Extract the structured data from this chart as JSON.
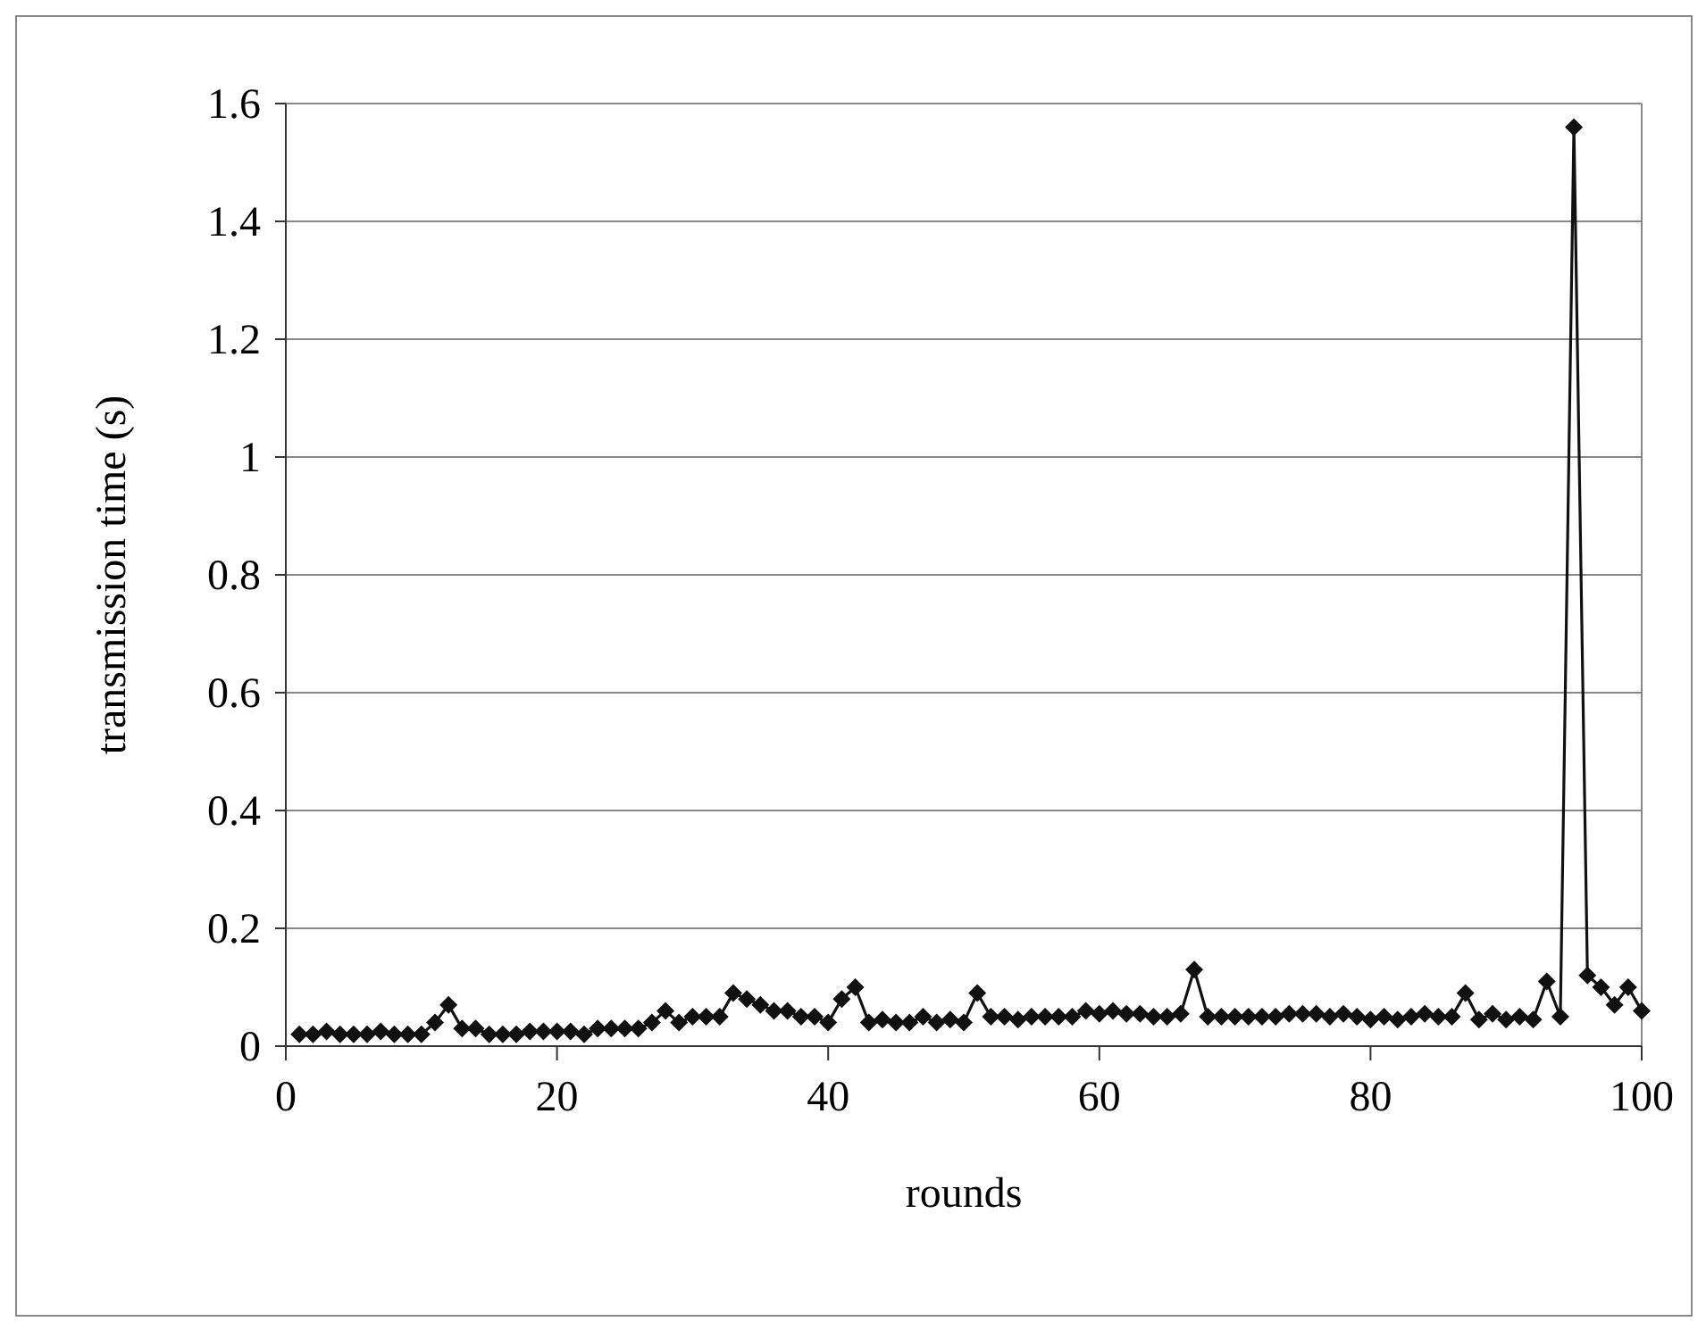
{
  "chart_data": {
    "type": "line",
    "xlabel": "rounds",
    "ylabel": "transmission time (s)",
    "x": [
      1,
      2,
      3,
      4,
      5,
      6,
      7,
      8,
      9,
      10,
      11,
      12,
      13,
      14,
      15,
      16,
      17,
      18,
      19,
      20,
      21,
      22,
      23,
      24,
      25,
      26,
      27,
      28,
      29,
      30,
      31,
      32,
      33,
      34,
      35,
      36,
      37,
      38,
      39,
      40,
      41,
      42,
      43,
      44,
      45,
      46,
      47,
      48,
      49,
      50,
      51,
      52,
      53,
      54,
      55,
      56,
      57,
      58,
      59,
      60,
      61,
      62,
      63,
      64,
      65,
      66,
      67,
      68,
      69,
      70,
      71,
      72,
      73,
      74,
      75,
      76,
      77,
      78,
      79,
      80,
      81,
      82,
      83,
      84,
      85,
      86,
      87,
      88,
      89,
      90,
      91,
      92,
      93,
      94,
      95,
      96,
      97,
      98,
      99,
      100
    ],
    "series": [
      {
        "color": "#111111",
        "values": [
          0.02,
          0.02,
          0.025,
          0.02,
          0.02,
          0.02,
          0.025,
          0.02,
          0.02,
          0.02,
          0.04,
          0.07,
          0.03,
          0.03,
          0.02,
          0.02,
          0.02,
          0.025,
          0.025,
          0.025,
          0.025,
          0.02,
          0.03,
          0.03,
          0.03,
          0.03,
          0.04,
          0.06,
          0.04,
          0.05,
          0.05,
          0.05,
          0.09,
          0.08,
          0.07,
          0.06,
          0.06,
          0.05,
          0.05,
          0.04,
          0.08,
          0.1,
          0.04,
          0.045,
          0.04,
          0.04,
          0.05,
          0.04,
          0.045,
          0.04,
          0.09,
          0.05,
          0.05,
          0.045,
          0.05,
          0.05,
          0.05,
          0.05,
          0.06,
          0.055,
          0.06,
          0.055,
          0.055,
          0.05,
          0.05,
          0.055,
          0.13,
          0.05,
          0.05,
          0.05,
          0.05,
          0.05,
          0.05,
          0.055,
          0.055,
          0.055,
          0.05,
          0.055,
          0.05,
          0.045,
          0.05,
          0.045,
          0.05,
          0.055,
          0.05,
          0.05,
          0.09,
          0.045,
          0.055,
          0.045,
          0.05,
          0.045,
          0.11,
          0.05,
          1.56,
          0.12,
          0.1,
          0.07,
          0.1,
          0.06
        ]
      }
    ],
    "xlim": [
      0,
      100
    ],
    "xticks": [
      0,
      20,
      40,
      60,
      80,
      100
    ],
    "ylim": [
      0,
      1.6
    ],
    "yticks": [
      0,
      0.2,
      0.4,
      0.6,
      0.8,
      1,
      1.2,
      1.4,
      1.6
    ],
    "grid": "y",
    "marker": "diamond",
    "line_style": "solid"
  }
}
